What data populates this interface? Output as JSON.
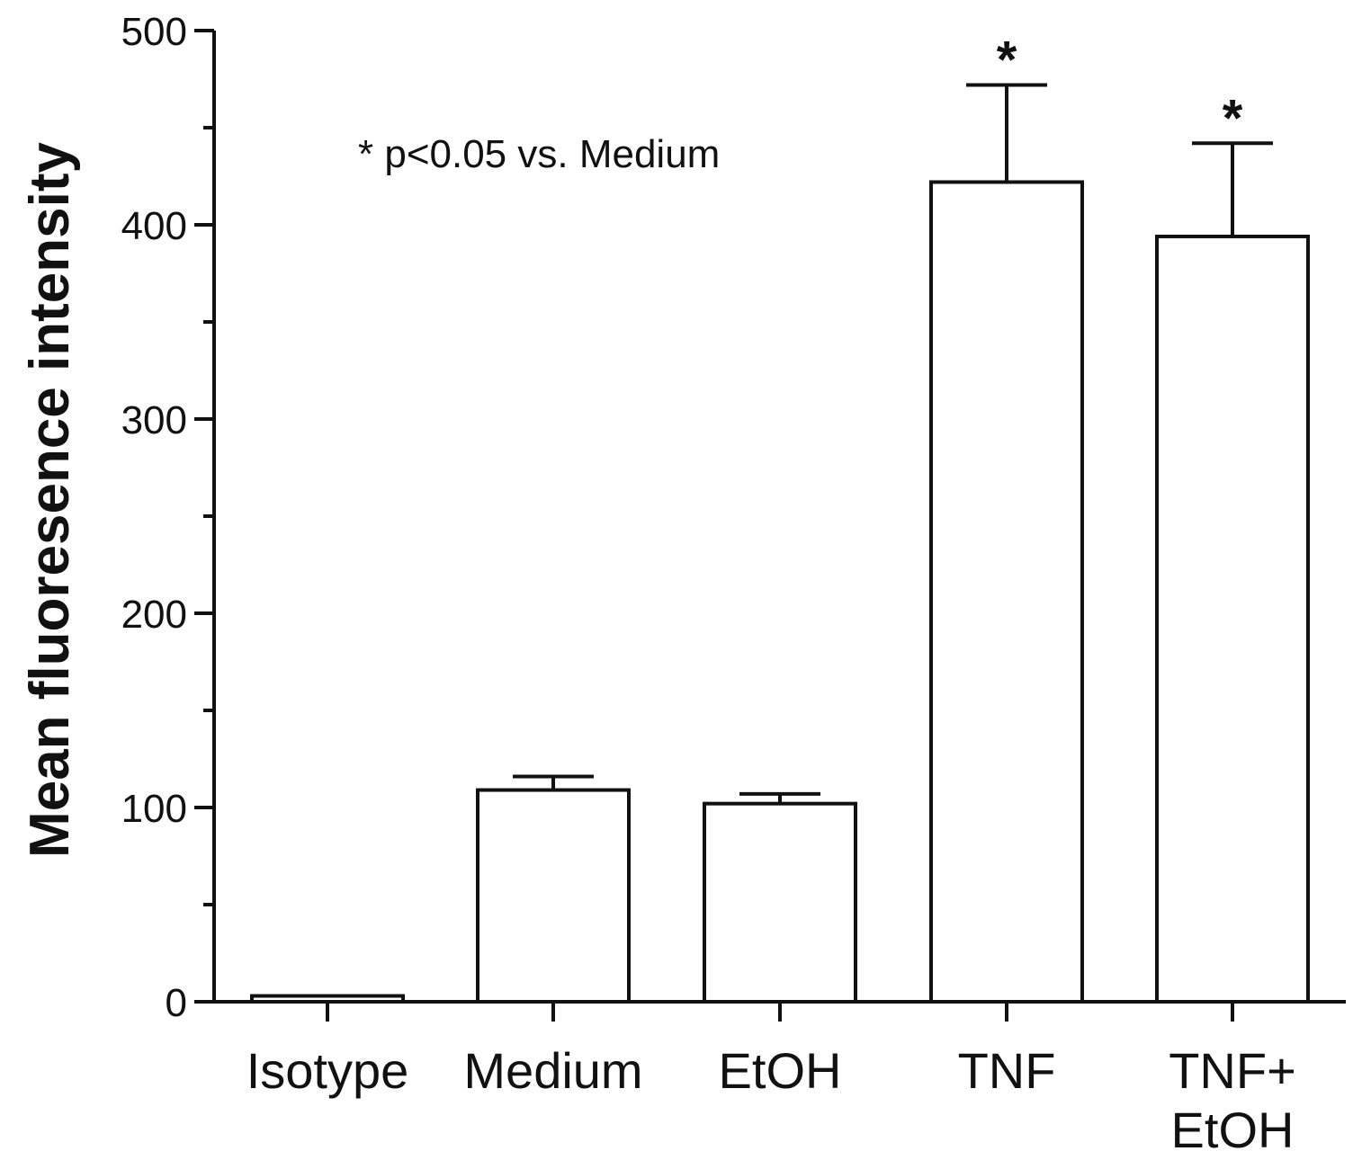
{
  "chart_data": {
    "type": "bar",
    "categories": [
      [
        "Isotype"
      ],
      [
        "Medium"
      ],
      [
        "EtOH"
      ],
      [
        "TNF"
      ],
      [
        "TNF+",
        "EtOH"
      ]
    ],
    "values": [
      3,
      109,
      102,
      422,
      394
    ],
    "errors": [
      0,
      7,
      5,
      50,
      48
    ],
    "significance": [
      "",
      "",
      "",
      "*",
      "*"
    ],
    "title": "",
    "xlabel": "",
    "ylabel": "Mean fluoresence intensity",
    "ylim": [
      0,
      500
    ],
    "yticks": [
      0,
      100,
      200,
      300,
      400,
      500
    ],
    "annotation": "* p<0.05 vs. Medium",
    "grid": false,
    "legend": "none",
    "colors": {
      "bar_fill": "#ffffff",
      "stroke": "#111111"
    }
  }
}
